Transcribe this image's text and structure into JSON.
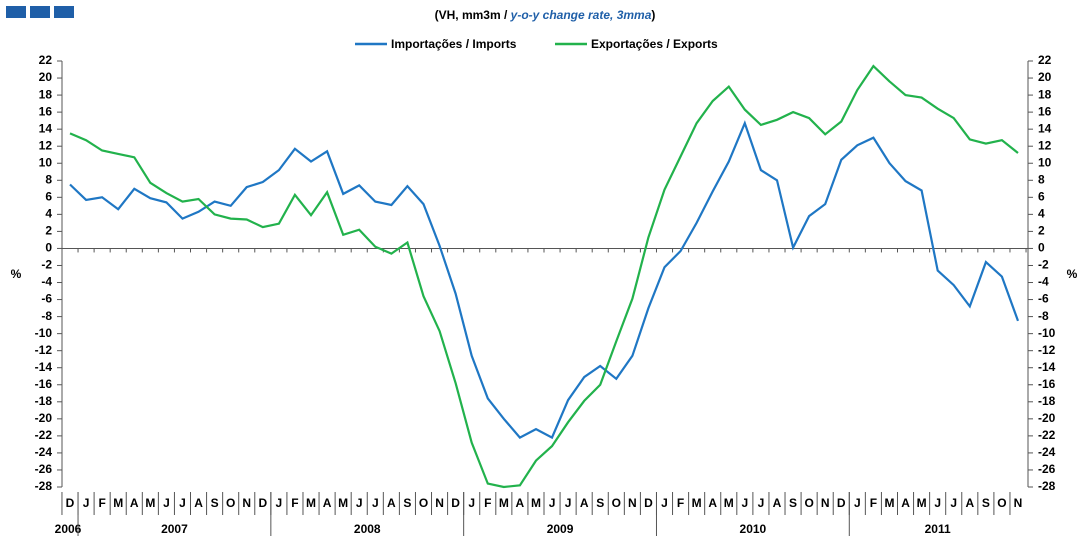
{
  "chart_data": {
    "type": "line",
    "title_parts": [
      "(VH, mm3m / ",
      "y-o-y change rate, 3mma",
      ")"
    ],
    "y_label": "%",
    "y2_label": "%",
    "categories": [
      "D",
      "J",
      "F",
      "M",
      "A",
      "M",
      "J",
      "J",
      "A",
      "S",
      "O",
      "N",
      "D",
      "J",
      "F",
      "M",
      "A",
      "M",
      "J",
      "J",
      "A",
      "S",
      "O",
      "N",
      "D",
      "J",
      "F",
      "M",
      "A",
      "M",
      "J",
      "J",
      "A",
      "S",
      "O",
      "N",
      "D",
      "J",
      "F",
      "M",
      "A",
      "M",
      "J",
      "J",
      "A",
      "S",
      "O",
      "N",
      "D",
      "J",
      "F",
      "M",
      "A",
      "M",
      "J",
      "J",
      "A",
      "S",
      "O",
      "N"
    ],
    "years": [
      "2006",
      "2007",
      "2008",
      "2009",
      "2010",
      "2011"
    ],
    "series": [
      {
        "name": "Importações / Imports",
        "color": "#1f77c4",
        "values": [
          7.5,
          5.7,
          6.0,
          4.6,
          7.0,
          5.9,
          5.4,
          3.5,
          4.3,
          5.5,
          5.0,
          7.2,
          7.8,
          9.2,
          11.7,
          10.2,
          11.4,
          6.4,
          7.4,
          5.5,
          5.1,
          7.3,
          5.2,
          0.3,
          -5.3,
          -12.6,
          -17.6,
          -20.0,
          -22.2,
          -21.2,
          -22.2,
          -17.8,
          -15.1,
          -13.8,
          -15.3,
          -12.6,
          -7.0,
          -2.2,
          -0.3,
          3.0,
          6.7,
          10.2,
          14.7,
          9.2,
          8.0,
          0.1,
          3.8,
          5.2,
          10.4,
          12.1,
          13.0,
          10.0,
          7.9,
          6.8,
          -2.6,
          -4.3,
          -6.8,
          -1.6,
          -3.3,
          -8.5
        ]
      },
      {
        "name": "Exportações / Exports",
        "color": "#22b24c",
        "values": [
          13.5,
          12.7,
          11.5,
          11.1,
          10.7,
          7.7,
          6.5,
          5.5,
          5.8,
          4.0,
          3.5,
          3.4,
          2.5,
          2.9,
          6.3,
          3.9,
          6.6,
          1.6,
          2.2,
          0.2,
          -0.6,
          0.7,
          -5.6,
          -9.7,
          -15.8,
          -22.8,
          -27.6,
          -28.0,
          -27.8,
          -24.9,
          -23.2,
          -20.4,
          -17.9,
          -16.0,
          -10.9,
          -5.9,
          1.3,
          6.9,
          10.8,
          14.7,
          17.3,
          19.0,
          16.3,
          14.5,
          15.1,
          16.0,
          15.3,
          13.4,
          14.9,
          18.6,
          21.4,
          19.6,
          18.0,
          17.7,
          16.4,
          15.3,
          12.8,
          12.3,
          12.7,
          11.2
        ]
      }
    ],
    "ylim": [
      -28,
      22
    ],
    "yticks": [
      22,
      20,
      18,
      16,
      14,
      12,
      10,
      8,
      6,
      4,
      2,
      0,
      -2,
      -4,
      -6,
      -8,
      -10,
      -12,
      -14,
      -16,
      -18,
      -20,
      -22,
      -24,
      -26,
      -28
    ],
    "y2lim": [
      -28,
      22
    ],
    "y2ticks": [
      22,
      20,
      18,
      16,
      14,
      12,
      10,
      8,
      6,
      4,
      2,
      0,
      -2,
      -4,
      -6,
      -8,
      -10,
      -12,
      -14,
      -16,
      -18,
      -20,
      -22,
      -24,
      -26,
      -28
    ]
  }
}
